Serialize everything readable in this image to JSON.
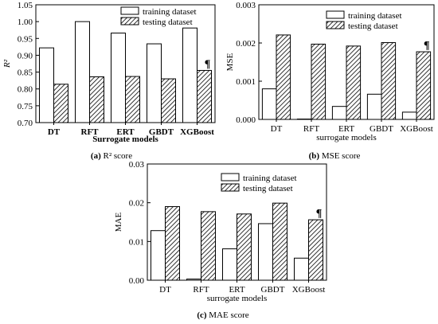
{
  "chart_data": [
    {
      "type": "bar",
      "panel_tag": "(a)",
      "caption": "R² score",
      "categories": [
        "DT",
        "RFT",
        "ERT",
        "GBDT",
        "XGBoost"
      ],
      "series": [
        {
          "name": "training dataset",
          "values": [
            0.922,
            1.0,
            0.966,
            0.934,
            0.981
          ]
        },
        {
          "name": "testing dataset",
          "values": [
            0.814,
            0.836,
            0.837,
            0.83,
            0.855
          ]
        }
      ],
      "xlabel": "Surrogate models",
      "ylabel": "R²",
      "ylim": [
        0.7,
        1.05
      ],
      "yticks": [
        "0.70",
        "0.75",
        "0.80",
        "0.85",
        "0.90",
        "0.95",
        "1.00",
        "1.05"
      ],
      "marker": "¶",
      "marker_index": 4
    },
    {
      "type": "bar",
      "panel_tag": "(b)",
      "caption": "MSE score",
      "categories": [
        "DT",
        "RFT",
        "ERT",
        "GBDT",
        "XGBoost"
      ],
      "series": [
        {
          "name": "training dataset",
          "values": [
            0.0008,
            1e-05,
            0.00034,
            0.00066,
            0.00019
          ]
        },
        {
          "name": "testing dataset",
          "values": [
            0.00221,
            0.00197,
            0.00192,
            0.00201,
            0.00177
          ]
        }
      ],
      "xlabel": "surrogate models",
      "ylabel": "MSE",
      "ylim": [
        0,
        0.003
      ],
      "yticks": [
        "0.000",
        "0.001",
        "0.002",
        "0.003"
      ],
      "marker": "¶",
      "marker_index": 4
    },
    {
      "type": "bar",
      "panel_tag": "(c)",
      "caption": "MAE score",
      "categories": [
        "DT",
        "RFT",
        "ERT",
        "GBDT",
        "XGBoost"
      ],
      "series": [
        {
          "name": "training dataset",
          "values": [
            0.0128,
            0.0003,
            0.0081,
            0.0146,
            0.0057
          ]
        },
        {
          "name": "testing dataset",
          "values": [
            0.019,
            0.0177,
            0.0171,
            0.0199,
            0.0156
          ]
        }
      ],
      "xlabel": "surrogate models",
      "ylabel": "MAE",
      "ylim": [
        0,
        0.03
      ],
      "yticks": [
        "0.00",
        "0.01",
        "0.02",
        "0.03"
      ],
      "marker": "¶",
      "marker_index": 4
    }
  ],
  "colors": {
    "bar_outline": "#000000",
    "training_fill": "#ffffff",
    "testing_hatch": "#000000",
    "marker": "#ff0000"
  }
}
